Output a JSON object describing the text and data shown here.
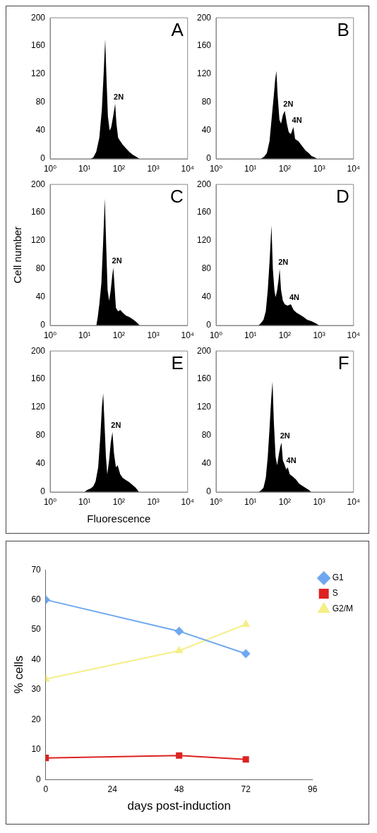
{
  "chart_data": [
    {
      "type": "area",
      "color": "#000000",
      "x": [
        15,
        18,
        22,
        27,
        32,
        36,
        40,
        44,
        48,
        54,
        60,
        68,
        78,
        85,
        95,
        110,
        130,
        160,
        200,
        250,
        320,
        400
      ],
      "values": [
        0,
        2,
        10,
        30,
        70,
        120,
        170,
        110,
        60,
        40,
        45,
        60,
        78,
        50,
        30,
        25,
        20,
        15,
        10,
        6,
        3,
        0
      ],
      "log": "x",
      "xlim": [
        1,
        10000
      ],
      "xticks": [
        {
          "value": 1,
          "label": "10⁰"
        },
        {
          "value": 10,
          "label": "10¹"
        },
        {
          "value": 100,
          "label": "10²"
        },
        {
          "value": 1000,
          "label": "10³"
        },
        {
          "value": 10000,
          "label": "10⁴"
        }
      ],
      "ylim": [
        0,
        200
      ],
      "yticks": [
        0,
        40,
        80,
        120,
        160,
        200
      ],
      "grid": false,
      "legend": false,
      "annotations": [
        "A",
        {
          "text": "2N",
          "x": 78,
          "y": 78
        }
      ]
    },
    {
      "type": "area",
      "color": "#000000",
      "x": [
        20,
        25,
        30,
        36,
        42,
        48,
        52,
        57,
        62,
        70,
        78,
        88,
        100,
        115,
        130,
        150,
        178,
        200,
        250,
        320,
        400,
        500,
        600,
        750,
        870
      ],
      "values": [
        0,
        3,
        8,
        25,
        60,
        90,
        110,
        125,
        90,
        55,
        50,
        62,
        68,
        50,
        38,
        35,
        45,
        28,
        25,
        18,
        12,
        8,
        4,
        2,
        0
      ],
      "log": "x",
      "xlim": [
        1,
        10000
      ],
      "xticks": [
        {
          "value": 1,
          "label": "10⁰"
        },
        {
          "value": 10,
          "label": "10¹"
        },
        {
          "value": 100,
          "label": "10²"
        },
        {
          "value": 1000,
          "label": "10³"
        },
        {
          "value": 10000,
          "label": "10⁴"
        }
      ],
      "ylim": [
        0,
        200
      ],
      "yticks": [
        0,
        40,
        80,
        120,
        160,
        200
      ],
      "grid": false,
      "legend": false,
      "annotations": [
        "B",
        {
          "text": "2N",
          "x": 100,
          "y": 68
        },
        {
          "text": "4N",
          "x": 178,
          "y": 45
        }
      ]
    },
    {
      "type": "area",
      "color": "#000000",
      "x": [
        22,
        24,
        27,
        31,
        35,
        39,
        43,
        47,
        52,
        58,
        64,
        69,
        75,
        82,
        95,
        110,
        130,
        160,
        200,
        250,
        320,
        405
      ],
      "values": [
        0,
        10,
        30,
        60,
        120,
        180,
        110,
        50,
        35,
        50,
        70,
        82,
        55,
        25,
        20,
        22,
        18,
        14,
        12,
        9,
        5,
        0
      ],
      "log": "x",
      "xlim": [
        1,
        10000
      ],
      "xticks": [
        {
          "value": 1,
          "label": "10⁰"
        },
        {
          "value": 10,
          "label": "10¹"
        },
        {
          "value": 100,
          "label": "10²"
        },
        {
          "value": 1000,
          "label": "10³"
        },
        {
          "value": 10000,
          "label": "10⁴"
        }
      ],
      "ylim": [
        0,
        200
      ],
      "yticks": [
        0,
        40,
        80,
        120,
        160,
        200
      ],
      "grid": false,
      "legend": false,
      "ylabel": "Cell number",
      "annotations": [
        "C",
        {
          "text": "2N",
          "x": 69,
          "y": 82
        }
      ]
    },
    {
      "type": "area",
      "color": "#000000",
      "x": [
        17,
        20,
        24,
        28,
        32,
        36,
        41,
        45,
        50,
        54,
        60,
        66,
        71,
        78,
        88,
        100,
        120,
        150,
        180,
        220,
        280,
        350,
        450,
        600,
        800,
        1000
      ],
      "values": [
        0,
        3,
        8,
        20,
        50,
        90,
        142,
        80,
        50,
        40,
        50,
        65,
        80,
        50,
        35,
        30,
        28,
        30,
        22,
        18,
        15,
        12,
        8,
        6,
        3,
        0
      ],
      "log": "x",
      "xlim": [
        1,
        10000
      ],
      "xticks": [
        {
          "value": 1,
          "label": "10⁰"
        },
        {
          "value": 10,
          "label": "10¹"
        },
        {
          "value": 100,
          "label": "10²"
        },
        {
          "value": 1000,
          "label": "10³"
        },
        {
          "value": 10000,
          "label": "10⁴"
        }
      ],
      "ylim": [
        0,
        200
      ],
      "yticks": [
        0,
        40,
        80,
        120,
        160,
        200
      ],
      "grid": false,
      "legend": false,
      "annotations": [
        "D",
        {
          "text": "2N",
          "x": 71,
          "y": 80
        },
        {
          "text": "4N",
          "x": 150,
          "y": 30
        }
      ]
    },
    {
      "type": "area",
      "color": "#000000",
      "x": [
        10,
        12,
        15,
        18,
        21,
        25,
        29,
        32,
        35,
        38,
        42,
        46,
        52,
        58,
        65,
        72,
        82,
        92,
        110,
        130,
        160,
        200,
        250,
        310,
        385
      ],
      "values": [
        0,
        3,
        5,
        8,
        15,
        35,
        80,
        120,
        140,
        100,
        50,
        25,
        45,
        70,
        85,
        55,
        35,
        38,
        25,
        20,
        17,
        14,
        10,
        6,
        0
      ],
      "log": "x",
      "xlim": [
        1,
        10000
      ],
      "xticks": [
        {
          "value": 1,
          "label": "10⁰"
        },
        {
          "value": 10,
          "label": "10¹"
        },
        {
          "value": 100,
          "label": "10²"
        },
        {
          "value": 1000,
          "label": "10³"
        },
        {
          "value": 10000,
          "label": "10⁴"
        }
      ],
      "ylim": [
        0,
        200
      ],
      "yticks": [
        0,
        40,
        80,
        120,
        160,
        200
      ],
      "grid": false,
      "legend": false,
      "xlabel": "Fluorescence",
      "annotations": [
        "E",
        {
          "text": "2N",
          "x": 65,
          "y": 85
        }
      ]
    },
    {
      "type": "area",
      "color": "#000000",
      "x": [
        17,
        20,
        24,
        28,
        32,
        36,
        40,
        44,
        48,
        54,
        60,
        68,
        75,
        80,
        88,
        100,
        110,
        122,
        140,
        170,
        210,
        260,
        320,
        400,
        500,
        590
      ],
      "values": [
        0,
        2,
        6,
        20,
        50,
        90,
        130,
        157,
        100,
        50,
        38,
        55,
        65,
        70,
        45,
        38,
        32,
        35,
        25,
        22,
        18,
        12,
        9,
        6,
        3,
        0
      ],
      "log": "x",
      "xlim": [
        1,
        10000
      ],
      "xticks": [
        {
          "value": 1,
          "label": "10⁰"
        },
        {
          "value": 10,
          "label": "10¹"
        },
        {
          "value": 100,
          "label": "10²"
        },
        {
          "value": 1000,
          "label": "10³"
        },
        {
          "value": 10000,
          "label": "10⁴"
        }
      ],
      "ylim": [
        0,
        200
      ],
      "yticks": [
        0,
        40,
        80,
        120,
        160,
        200
      ],
      "grid": false,
      "legend": false,
      "annotations": [
        "F",
        {
          "text": "2N",
          "x": 80,
          "y": 70
        },
        {
          "text": "4N",
          "x": 122,
          "y": 35
        }
      ]
    },
    {
      "type": "line",
      "x": [
        0,
        48,
        72
      ],
      "xlabel": "days post-induction",
      "ylabel": "% cells",
      "xlim": [
        0,
        96
      ],
      "xticks": [
        0,
        24,
        48,
        72,
        96
      ],
      "ylim": [
        0,
        70
      ],
      "yticks": [
        0,
        10,
        20,
        30,
        40,
        50,
        60,
        70
      ],
      "grid": false,
      "legend": "top right",
      "series": [
        {
          "name": "G1",
          "color": "#6fa8f0",
          "marker": "diamond",
          "values": [
            60,
            49.5,
            42
          ]
        },
        {
          "name": "S",
          "color": "#dd2222",
          "marker": "square",
          "values": [
            7.2,
            8,
            6.7
          ]
        },
        {
          "name": "G2/M",
          "color": "#f5ee88",
          "marker": "triangle",
          "values": [
            33.5,
            43,
            51.8
          ]
        }
      ]
    }
  ]
}
